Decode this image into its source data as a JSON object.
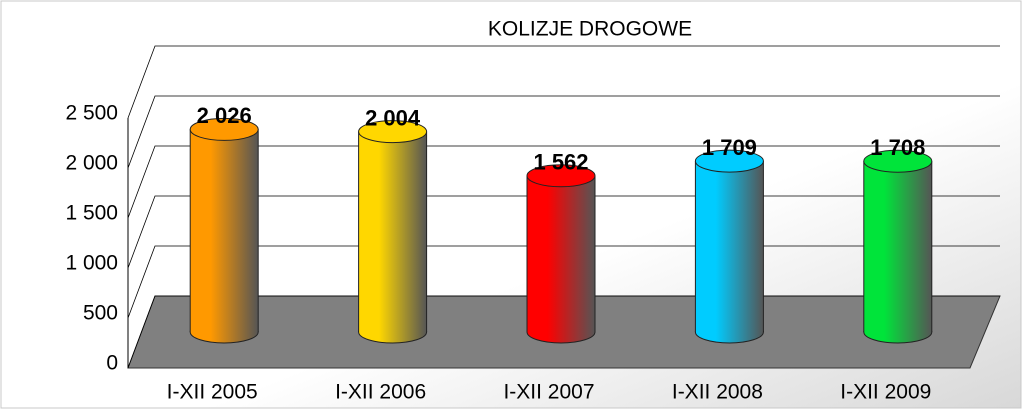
{
  "chart_data": {
    "type": "bar3d",
    "title": "KOLIZJE DROGOWE",
    "categories": [
      "I-XII 2005",
      "I-XII 2006",
      "I-XII 2007",
      "I-XII 2008",
      "I-XII 2009"
    ],
    "values": [
      2026,
      2004,
      1562,
      1709,
      1708
    ],
    "value_labels": [
      "2 026",
      "2 004",
      "1 562",
      "1 709",
      "1 708"
    ],
    "colors": [
      "#ff9900",
      "#ffd700",
      "#ff0000",
      "#00ccff",
      "#00e43a"
    ],
    "ylim": [
      0,
      2500
    ],
    "yticks": [
      0,
      500,
      {
        "value": 1000,
        "label": "1 000"
      },
      {
        "value": 1500,
        "label": "1 500"
      },
      {
        "value": 2000,
        "label": "2 000"
      },
      {
        "value": 2500,
        "label": "2 500"
      }
    ],
    "grid": true
  }
}
